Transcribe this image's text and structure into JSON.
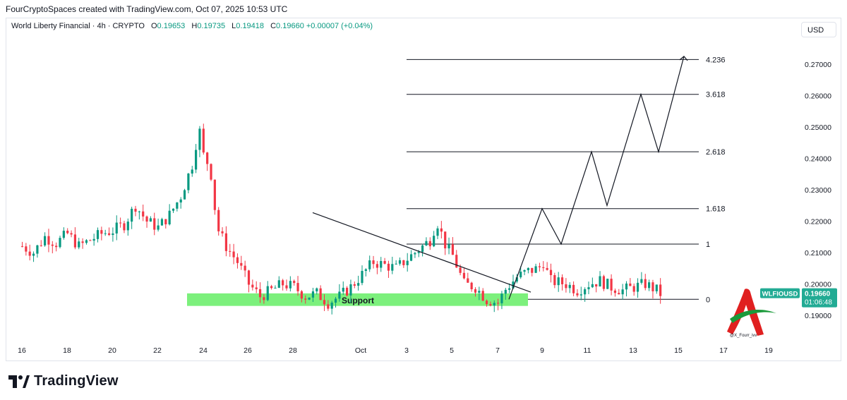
{
  "header": {
    "attribution": "FourCryptoSpaces created with TradingView.com, Oct 07, 2025 10:53 UTC"
  },
  "legend": {
    "symbol": "World Liberty Financial · 4h · CRYPTO",
    "open_label": "O",
    "open_value": "0.19653",
    "high_label": "H",
    "high_value": "0.19735",
    "low_label": "L",
    "low_value": "0.19418",
    "close_label": "C",
    "close_value": "0.19660",
    "change": "+0.00007 (+0.04%)"
  },
  "currency_button": "USD",
  "price_tag": {
    "ticker": "WLFIOUSD",
    "price": "0.19660",
    "countdown": "01:06:48"
  },
  "support_label": "Support",
  "watermark_text": "@X_Fourr_ivv",
  "footer": {
    "brand": "TradingView"
  },
  "colors": {
    "up": "#089981",
    "down": "#f23645",
    "support_zone": "#7cf07c",
    "tag_green": "#22ab94",
    "text": "#131722"
  },
  "chart_data": {
    "type": "candlestick",
    "y_axis_ticks": [
      "0.27000",
      "0.26000",
      "0.25000",
      "0.24000",
      "0.23000",
      "0.22000",
      "0.21000",
      "0.20000",
      "0.19000"
    ],
    "x_axis_ticks": [
      "16",
      "18",
      "20",
      "22",
      "24",
      "26",
      "28",
      "Oct",
      "3",
      "5",
      "7",
      "9",
      "11",
      "13",
      "15",
      "17",
      "19"
    ],
    "ylim": [
      0.1847,
      0.2729
    ],
    "fib_levels": [
      {
        "label": "4.236",
        "price": 0.2715
      },
      {
        "label": "3.618",
        "price": 0.2604
      },
      {
        "label": "2.618",
        "price": 0.2421
      },
      {
        "label": "1.618",
        "price": 0.224
      },
      {
        "label": "1",
        "price": 0.2127
      },
      {
        "label": "0",
        "price": 0.1951
      }
    ],
    "support_zone": {
      "low": 0.193,
      "high": 0.197
    },
    "trendline": [
      {
        "date": "Sep 29 ~02:00",
        "price": 0.2227
      },
      {
        "date": "Oct 08 ~20:00",
        "price": 0.1974
      }
    ],
    "projection_path": [
      {
        "date": "Oct 7 ~18:00",
        "price": 0.1951
      },
      {
        "date": "Oct 9",
        "price": 0.224
      },
      {
        "date": "Oct 9 ~21:00",
        "price": 0.2127
      },
      {
        "date": "Oct 11",
        "price": 0.2421
      },
      {
        "date": "Oct 11 ~20:00",
        "price": 0.225
      },
      {
        "date": "Oct 13 ~10:00",
        "price": 0.2604
      },
      {
        "date": "Oct 14 ~06:00",
        "price": 0.2421
      },
      {
        "date": "Oct 15 ~15:00",
        "price": 0.2725
      }
    ],
    "last_close": 0.1966
  }
}
